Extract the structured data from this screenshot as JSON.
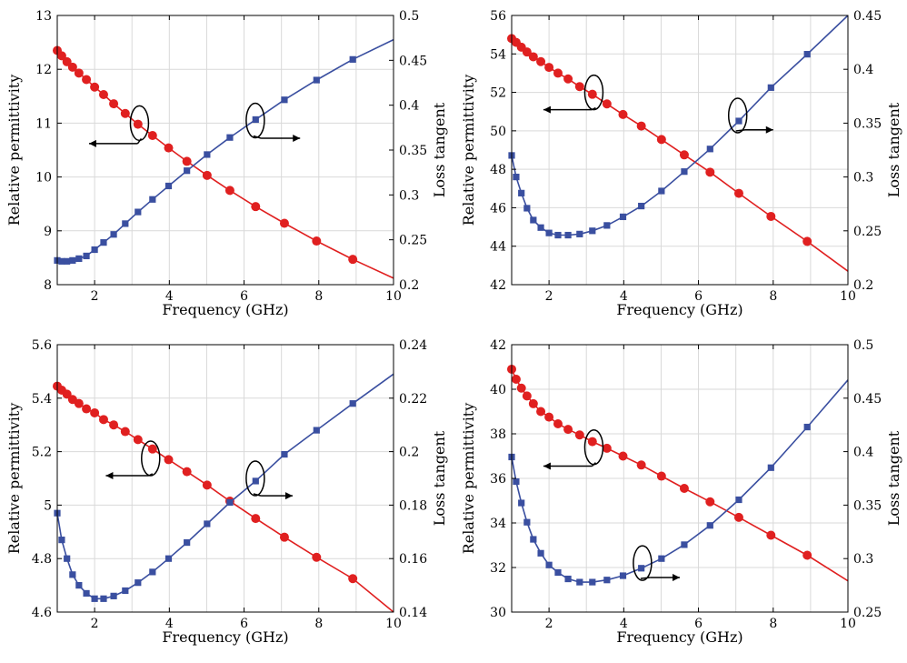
{
  "colors": {
    "permittivity": "#e02020",
    "loss_tangent": "#3a4fa0",
    "axis": "#000000",
    "grid": "#d9d9d9"
  },
  "chart_data": [
    {
      "type": "line",
      "xlabel": "Frequency (GHz)",
      "ylabel_left": "Relative permittivity",
      "ylabel_right": "Loss tangent",
      "xlim": [
        1,
        10
      ],
      "ylim_left": [
        8,
        13
      ],
      "ylim_right": [
        0.2,
        0.5
      ],
      "xticks": [
        2,
        4,
        6,
        8,
        10
      ],
      "yticks_left": [
        8,
        9,
        10,
        11,
        12,
        13
      ],
      "yticks_right": [
        0.2,
        0.25,
        0.3,
        0.35,
        0.4,
        0.45,
        0.5
      ],
      "grid": true,
      "series": [
        {
          "axis": "left",
          "color": "#e02020",
          "marker": "circle",
          "x": [
            1.0,
            1.12,
            1.26,
            1.41,
            1.58,
            1.78,
            2.0,
            2.24,
            2.51,
            2.82,
            3.16,
            3.55,
            3.98,
            4.47,
            5.01,
            5.62,
            6.31,
            7.08,
            7.94,
            8.91
          ],
          "y": [
            12.35,
            12.25,
            12.14,
            12.04,
            11.93,
            11.81,
            11.67,
            11.53,
            11.36,
            11.18,
            10.98,
            10.77,
            10.54,
            10.29,
            10.03,
            9.75,
            9.45,
            9.14,
            8.81,
            8.47
          ],
          "line_x": [
            1,
            10
          ],
          "line_y": [
            12.4,
            8.12
          ]
        },
        {
          "axis": "right",
          "color": "#3a4fa0",
          "marker": "square",
          "x": [
            1.0,
            1.12,
            1.26,
            1.41,
            1.58,
            1.78,
            2.0,
            2.24,
            2.51,
            2.82,
            3.16,
            3.55,
            3.98,
            4.47,
            5.01,
            5.62,
            6.31,
            7.08,
            7.94,
            8.91
          ],
          "y": [
            0.227,
            0.226,
            0.226,
            0.227,
            0.229,
            0.232,
            0.239,
            0.247,
            0.256,
            0.268,
            0.281,
            0.295,
            0.31,
            0.327,
            0.345,
            0.364,
            0.384,
            0.406,
            0.428,
            0.451
          ],
          "line_x": [
            8.91,
            10
          ],
          "line_y": [
            0.451,
            0.473
          ]
        }
      ],
      "annotations": [
        {
          "cx": 3.2,
          "cy": 11.0,
          "ax1": 3.15,
          "ax2": 1.85,
          "ay": 10.62
        },
        {
          "cx": 6.3,
          "cy": 11.05,
          "ax1": 6.45,
          "ax2": 7.5,
          "ay": 10.72
        }
      ]
    },
    {
      "type": "line",
      "xlabel": "Frequency (GHz)",
      "ylabel_left": "Relative permittivity",
      "ylabel_right": "Loss tangent",
      "xlim": [
        1,
        10
      ],
      "ylim_left": [
        42,
        56
      ],
      "ylim_right": [
        0.2,
        0.45
      ],
      "xticks": [
        2,
        4,
        6,
        8,
        10
      ],
      "yticks_left": [
        42,
        44,
        46,
        48,
        50,
        52,
        54,
        56
      ],
      "yticks_right": [
        0.2,
        0.25,
        0.3,
        0.35,
        0.4,
        0.45
      ],
      "grid": true,
      "series": [
        {
          "axis": "left",
          "color": "#e02020",
          "marker": "circle",
          "x": [
            1.0,
            1.12,
            1.26,
            1.41,
            1.58,
            1.78,
            2.0,
            2.24,
            2.51,
            2.82,
            3.16,
            3.55,
            3.98,
            4.47,
            5.01,
            5.62,
            6.31,
            7.08,
            7.94,
            8.91
          ],
          "y": [
            54.8,
            54.6,
            54.35,
            54.1,
            53.85,
            53.6,
            53.3,
            53.0,
            52.7,
            52.3,
            51.9,
            51.4,
            50.85,
            50.25,
            49.55,
            48.75,
            47.85,
            46.75,
            45.55,
            44.25
          ],
          "line_x": [
            1,
            10
          ],
          "line_y": [
            54.9,
            42.7
          ]
        },
        {
          "axis": "right",
          "color": "#3a4fa0",
          "marker": "square",
          "x": [
            1.0,
            1.12,
            1.26,
            1.41,
            1.58,
            1.78,
            2.0,
            2.24,
            2.51,
            2.82,
            3.16,
            3.55,
            3.98,
            4.47,
            5.01,
            5.62,
            6.31,
            7.08,
            7.94,
            8.91
          ],
          "y": [
            0.32,
            0.3,
            0.285,
            0.271,
            0.26,
            0.253,
            0.248,
            0.246,
            0.246,
            0.247,
            0.25,
            0.255,
            0.263,
            0.273,
            0.287,
            0.305,
            0.326,
            0.352,
            0.383,
            0.414
          ],
          "line_x": [
            8.91,
            10
          ],
          "line_y": [
            0.414,
            0.45
          ]
        }
      ],
      "annotations": [
        {
          "cx": 3.2,
          "cy": 52.0,
          "ax1": 3.15,
          "ax2": 1.85,
          "ay": 51.1
        },
        {
          "cx": 7.05,
          "cy": 50.8,
          "ax1": 7.25,
          "ax2": 8.0,
          "ay": 50.05
        }
      ]
    },
    {
      "type": "line",
      "xlabel": "Frequency (GHz)",
      "ylabel_left": "Relative permittivity",
      "ylabel_right": "Loss tangent",
      "xlim": [
        1,
        10
      ],
      "ylim_left": [
        4.6,
        5.6
      ],
      "ylim_right": [
        0.14,
        0.24
      ],
      "xticks": [
        2,
        4,
        6,
        8,
        10
      ],
      "yticks_left": [
        4.6,
        4.8,
        5,
        5.2,
        5.4,
        5.6
      ],
      "yticks_right": [
        0.14,
        0.16,
        0.18,
        0.2,
        0.22,
        0.24
      ],
      "grid": true,
      "series": [
        {
          "axis": "left",
          "color": "#e02020",
          "marker": "circle",
          "x": [
            1.0,
            1.12,
            1.26,
            1.41,
            1.58,
            1.78,
            2.0,
            2.24,
            2.51,
            2.82,
            3.16,
            3.55,
            3.98,
            4.47,
            5.01,
            5.62,
            6.31,
            7.08,
            7.94,
            8.91
          ],
          "y": [
            5.445,
            5.43,
            5.415,
            5.395,
            5.38,
            5.36,
            5.345,
            5.32,
            5.3,
            5.275,
            5.245,
            5.21,
            5.17,
            5.125,
            5.075,
            5.015,
            4.95,
            4.88,
            4.805,
            4.725
          ],
          "line_x": [
            1,
            10
          ],
          "line_y": [
            5.45,
            4.6
          ]
        },
        {
          "axis": "right",
          "color": "#3a4fa0",
          "marker": "square",
          "x": [
            1.0,
            1.12,
            1.26,
            1.41,
            1.58,
            1.78,
            2.0,
            2.24,
            2.51,
            2.82,
            3.16,
            3.55,
            3.98,
            4.47,
            5.01,
            5.62,
            6.31,
            7.08,
            7.94,
            8.91
          ],
          "y": [
            0.177,
            0.167,
            0.16,
            0.154,
            0.15,
            0.147,
            0.145,
            0.145,
            0.146,
            0.148,
            0.151,
            0.155,
            0.16,
            0.166,
            0.173,
            0.181,
            0.189,
            0.199,
            0.208,
            0.218
          ],
          "line_x": [
            8.91,
            10
          ],
          "line_y": [
            0.218,
            0.229
          ]
        }
      ],
      "annotations": [
        {
          "cx": 3.5,
          "cy": 5.175,
          "ax1": 3.45,
          "ax2": 2.3,
          "ay": 5.11
        },
        {
          "cx": 6.3,
          "cy": 5.1,
          "ax1": 6.45,
          "ax2": 7.3,
          "ay": 5.035
        }
      ]
    },
    {
      "type": "line",
      "xlabel": "Frequency (GHz)",
      "ylabel_left": "Relative permittivity",
      "ylabel_right": "Loss tangent",
      "xlim": [
        1,
        10
      ],
      "ylim_left": [
        30,
        42
      ],
      "ylim_right": [
        0.25,
        0.5
      ],
      "xticks": [
        2,
        4,
        6,
        8,
        10
      ],
      "yticks_left": [
        30,
        32,
        34,
        36,
        38,
        40,
        42
      ],
      "yticks_right": [
        0.25,
        0.3,
        0.35,
        0.4,
        0.45,
        0.5
      ],
      "grid": true,
      "series": [
        {
          "axis": "left",
          "color": "#e02020",
          "marker": "circle",
          "x": [
            1.0,
            1.12,
            1.26,
            1.41,
            1.58,
            1.78,
            2.0,
            2.24,
            2.51,
            2.82,
            3.16,
            3.55,
            3.98,
            4.47,
            5.01,
            5.62,
            6.31,
            7.08,
            7.94,
            8.91
          ],
          "y": [
            40.9,
            40.45,
            40.05,
            39.7,
            39.35,
            39.0,
            38.75,
            38.45,
            38.2,
            37.95,
            37.65,
            37.35,
            37.0,
            36.6,
            36.1,
            35.55,
            34.95,
            34.25,
            33.45,
            32.55
          ],
          "line_x": [
            1,
            10
          ],
          "line_y": [
            40.9,
            31.4
          ]
        },
        {
          "axis": "right",
          "color": "#3a4fa0",
          "marker": "square",
          "x": [
            1.0,
            1.12,
            1.26,
            1.41,
            1.58,
            1.78,
            2.0,
            2.24,
            2.51,
            2.82,
            3.16,
            3.55,
            3.98,
            4.47,
            5.01,
            5.62,
            6.31,
            7.08,
            7.94,
            8.91
          ],
          "y": [
            0.395,
            0.372,
            0.352,
            0.334,
            0.318,
            0.305,
            0.294,
            0.287,
            0.281,
            0.278,
            0.278,
            0.28,
            0.284,
            0.291,
            0.3,
            0.313,
            0.331,
            0.355,
            0.385,
            0.423
          ],
          "line_x": [
            8.91,
            10
          ],
          "line_y": [
            0.423,
            0.467
          ]
        }
      ],
      "annotations": [
        {
          "cx": 3.2,
          "cy": 37.4,
          "ax1": 3.15,
          "ax2": 1.85,
          "ay": 36.55
        },
        {
          "cx": 4.5,
          "cy": 32.2,
          "ax1": 4.7,
          "ax2": 5.5,
          "ay": 31.55
        }
      ]
    }
  ]
}
